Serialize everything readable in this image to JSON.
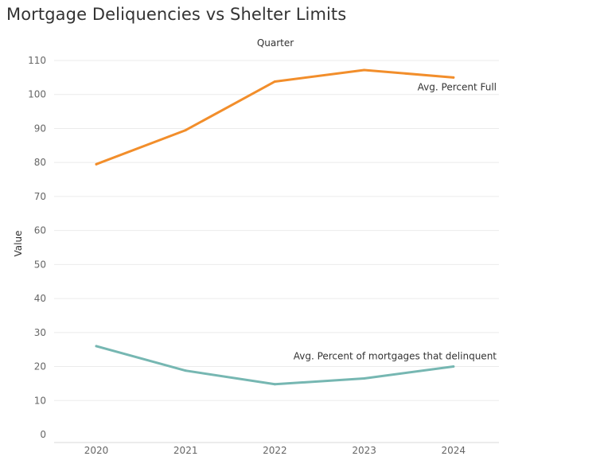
{
  "page": {
    "title": "Mortgage Deliquencies vs Shelter Limits"
  },
  "chart_data": {
    "type": "line",
    "title": "Mortgage Deliquencies vs Shelter Limits",
    "xlabel": "Quarter",
    "ylabel": "Value",
    "categories": [
      "2020",
      "2021",
      "2022",
      "2023",
      "2024"
    ],
    "ylim": [
      0,
      110
    ],
    "yticks": [
      0,
      10,
      20,
      30,
      40,
      50,
      60,
      70,
      80,
      90,
      100,
      110
    ],
    "grid": true,
    "series": [
      {
        "name": "Avg. Percent Full",
        "color": "#F28E2B",
        "values": [
          79.5,
          89.5,
          103.8,
          107.2,
          105.0
        ]
      },
      {
        "name": "Avg. Percent of mortgages that delinquent",
        "color": "#76B7B2",
        "values": [
          26.0,
          18.8,
          14.8,
          16.5,
          20.0
        ]
      }
    ]
  }
}
